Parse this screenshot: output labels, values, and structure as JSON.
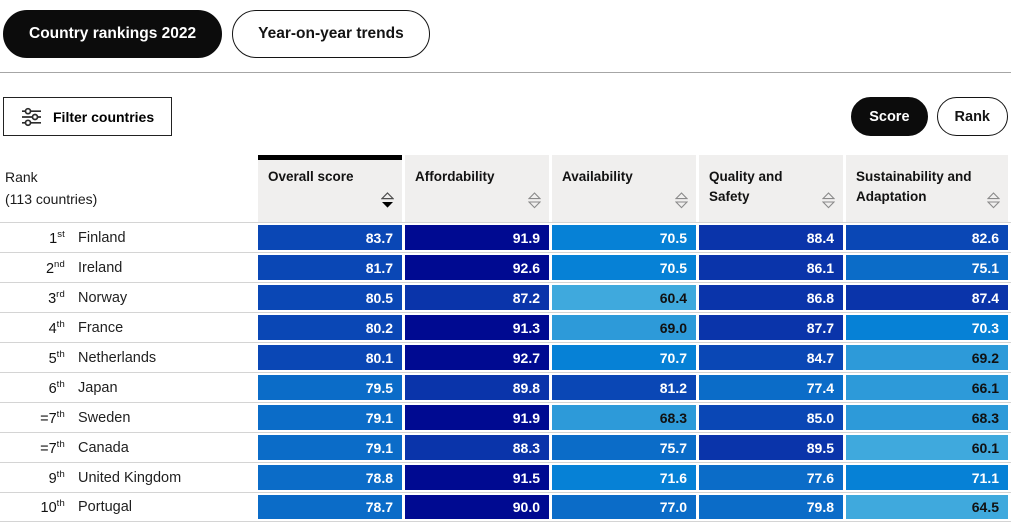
{
  "tabs": [
    {
      "label": "Country rankings 2022",
      "active": true
    },
    {
      "label": "Year-on-year trends",
      "active": false
    }
  ],
  "toolbar": {
    "filter_label": "Filter countries",
    "score_label": "Score",
    "rank_label": "Rank"
  },
  "table": {
    "rank_header_line1": "Rank",
    "rank_header_line2": "(113 countries)",
    "columns": [
      {
        "label": "Overall score",
        "sort": "desc"
      },
      {
        "label": "Affordability",
        "sort": "none"
      },
      {
        "label": "Availability",
        "sort": "none"
      },
      {
        "label": "Quality and Safety",
        "sort": "none"
      },
      {
        "label": "Sustainability and Adaptation",
        "sort": "none"
      }
    ],
    "rows": [
      {
        "rank": "1st",
        "country": "Finland",
        "values": [
          "83.7",
          "91.9",
          "70.5",
          "88.4",
          "82.6"
        ]
      },
      {
        "rank": "2nd",
        "country": "Ireland",
        "values": [
          "81.7",
          "92.6",
          "70.5",
          "86.1",
          "75.1"
        ]
      },
      {
        "rank": "3rd",
        "country": "Norway",
        "values": [
          "80.5",
          "87.2",
          "60.4",
          "86.8",
          "87.4"
        ]
      },
      {
        "rank": "4th",
        "country": "France",
        "values": [
          "80.2",
          "91.3",
          "69.0",
          "87.7",
          "70.3"
        ]
      },
      {
        "rank": "5th",
        "country": "Netherlands",
        "values": [
          "80.1",
          "92.7",
          "70.7",
          "84.7",
          "69.2"
        ]
      },
      {
        "rank": "6th",
        "country": "Japan",
        "values": [
          "79.5",
          "89.8",
          "81.2",
          "77.4",
          "66.1"
        ]
      },
      {
        "rank": "=7th",
        "country": "Sweden",
        "values": [
          "79.1",
          "91.9",
          "68.3",
          "85.0",
          "68.3"
        ]
      },
      {
        "rank": "=7th",
        "country": "Canada",
        "values": [
          "79.1",
          "88.3",
          "75.7",
          "89.5",
          "60.1"
        ]
      },
      {
        "rank": "9th",
        "country": "United Kingdom",
        "values": [
          "78.8",
          "91.5",
          "71.6",
          "77.6",
          "71.1"
        ]
      },
      {
        "rank": "10th",
        "country": "Portugal",
        "values": [
          "78.7",
          "90.0",
          "77.0",
          "79.8",
          "64.5"
        ]
      }
    ],
    "score_color_bands": [
      {
        "min": 90,
        "color": "#000a91"
      },
      {
        "min": 86,
        "color": "#0a34aa"
      },
      {
        "min": 80,
        "color": "#0a47b5"
      },
      {
        "min": 75,
        "color": "#0b6cc8"
      },
      {
        "min": 70,
        "color": "#0681d6"
      },
      {
        "min": 65,
        "color": "#2d9ad9"
      },
      {
        "min": 0,
        "color": "#3fa9dd"
      }
    ],
    "value_text_colors": {
      "light": "#ffffff",
      "dark": "#111111",
      "dark_below": 70
    }
  }
}
